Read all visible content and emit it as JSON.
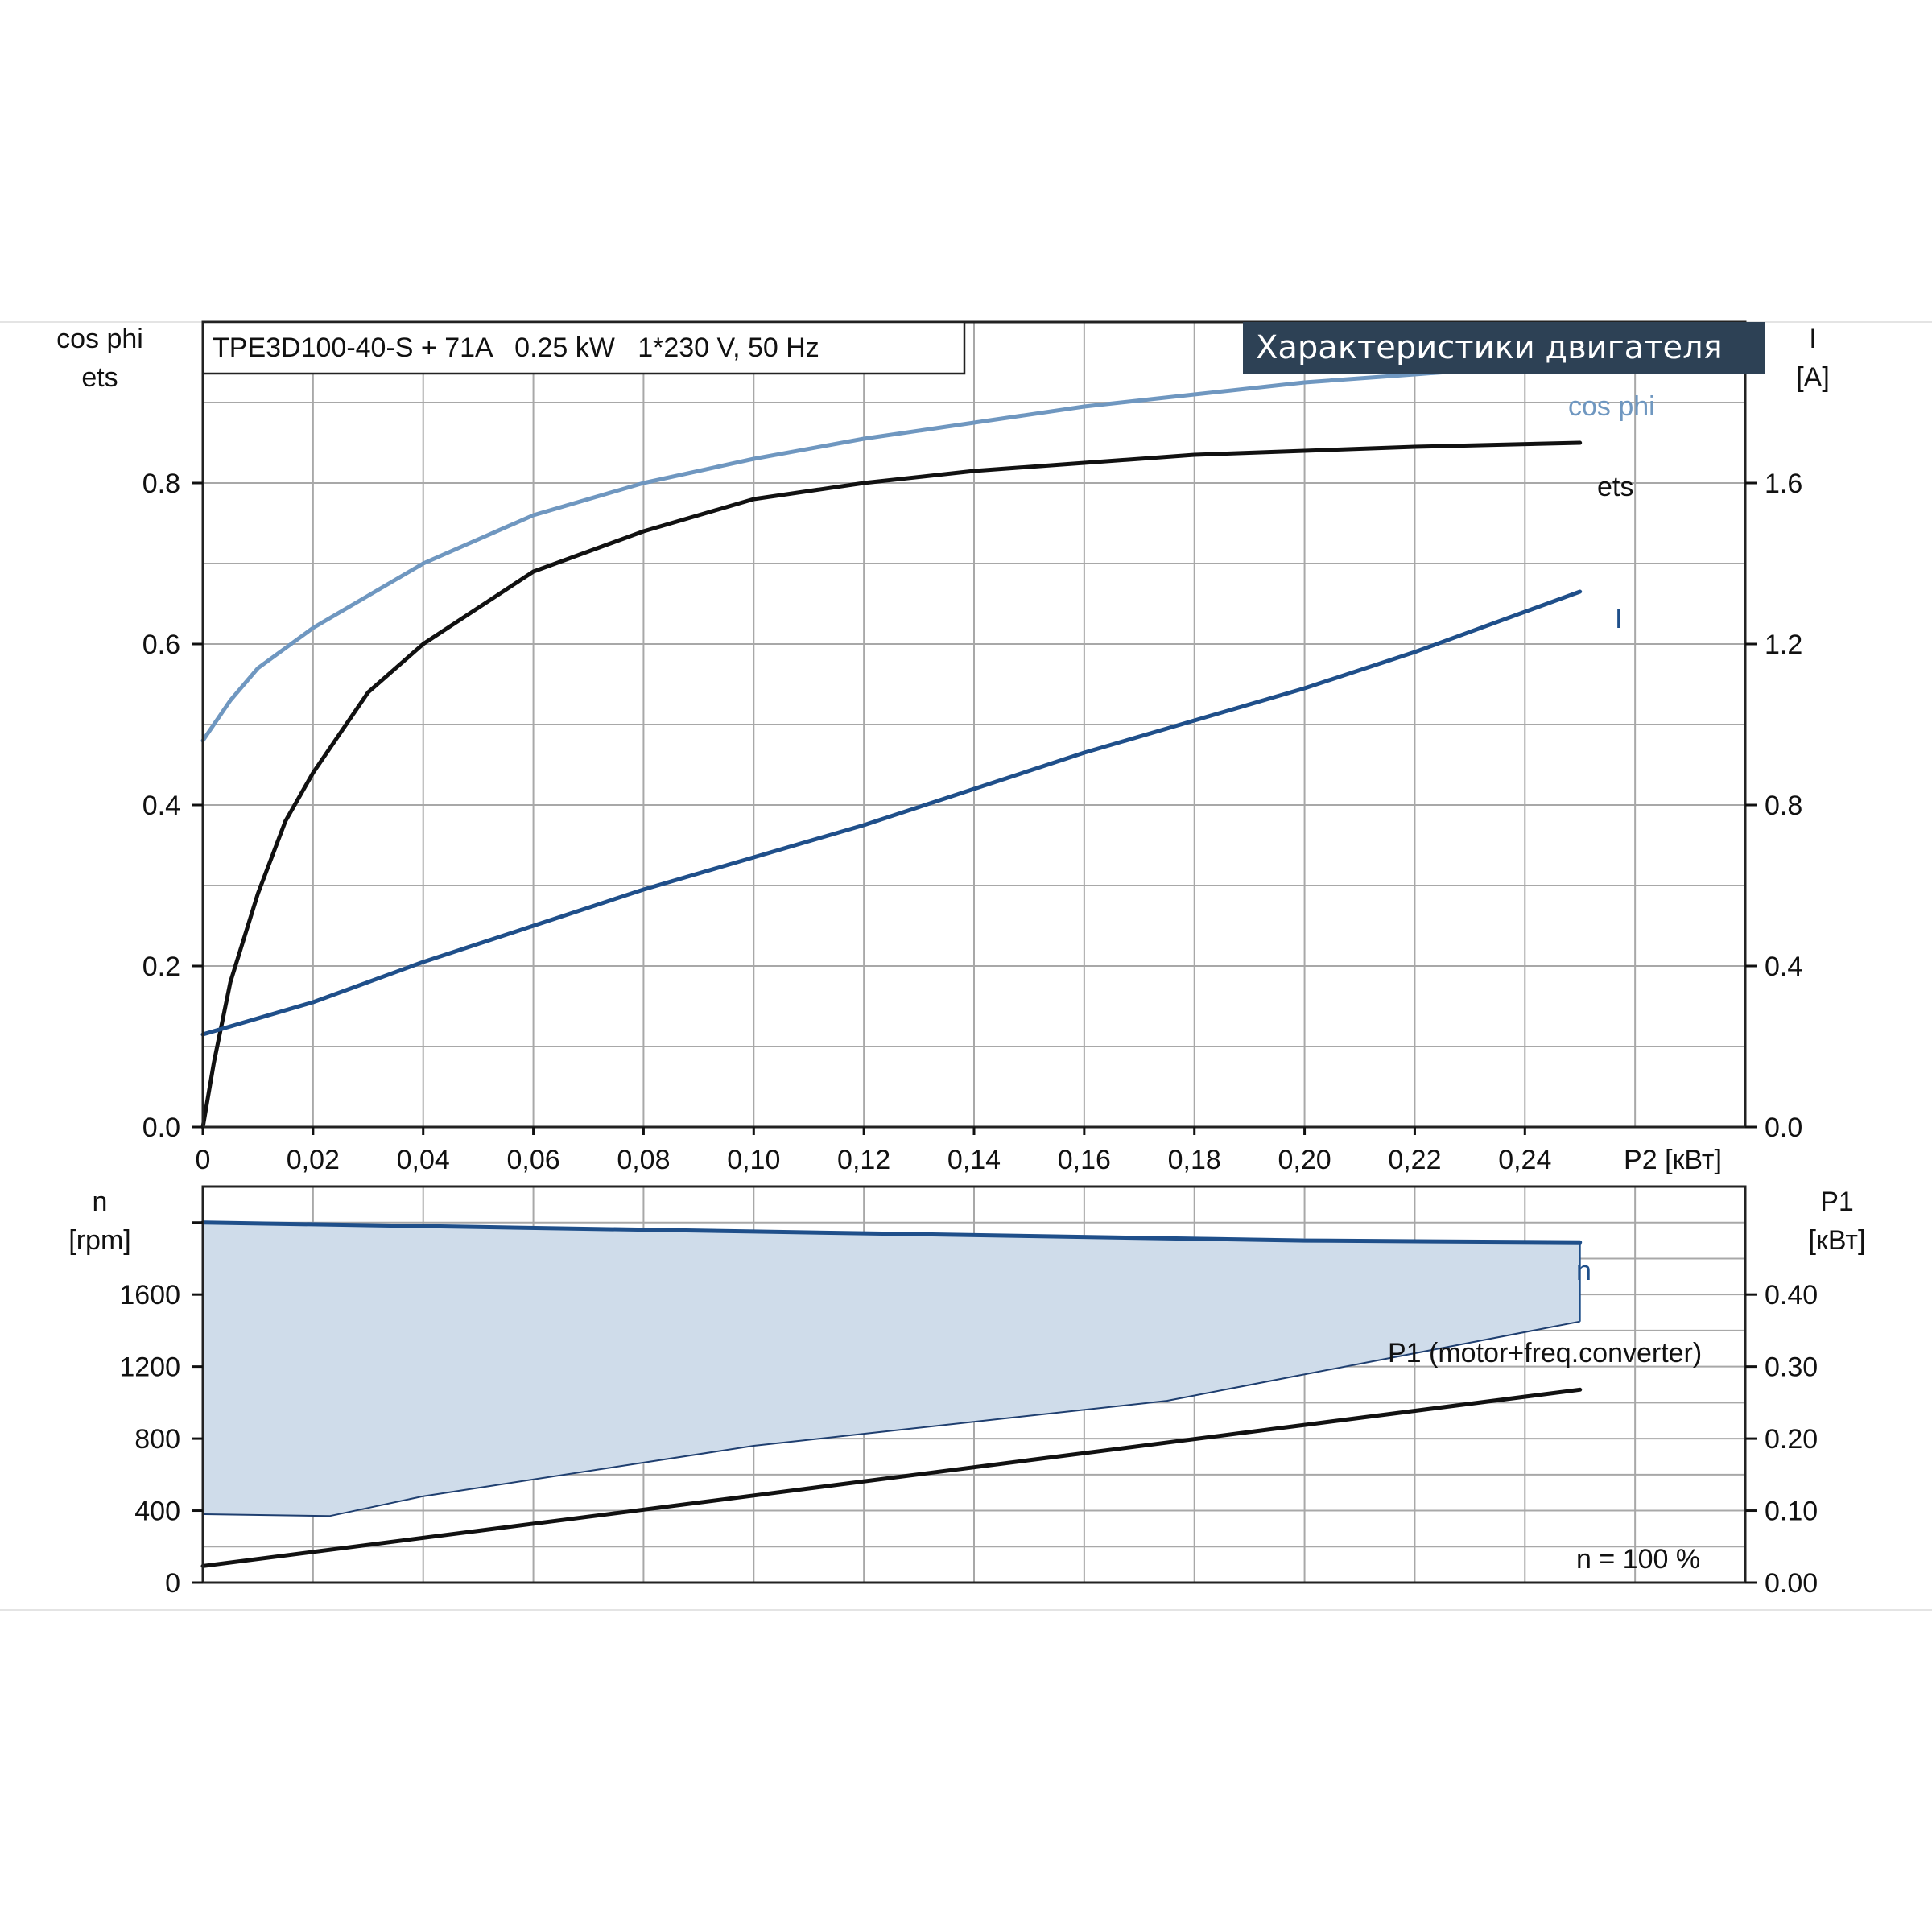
{
  "top_chart": {
    "header_text": "TPE3D100-40-S + 71A   0.25 kW   1*230 V, 50 Hz",
    "badge_text": "Характеристики двигателя",
    "left_axis_label_line1": "cos phi",
    "left_axis_label_line2": "ets",
    "right_axis_label_line1": "I",
    "right_axis_label_line2": "[A]",
    "x_axis_label": "P2 [кВт]",
    "x_ticks": [
      "0",
      "0,02",
      "0,04",
      "0,06",
      "0,08",
      "0,10",
      "0,12",
      "0,14",
      "0,16",
      "0,18",
      "0,20",
      "0,22",
      "0,24"
    ],
    "left_ticks": [
      "0.0",
      "0.2",
      "0.4",
      "0.6",
      "0.8"
    ],
    "right_ticks": [
      "0.0",
      "0.4",
      "0.8",
      "1.2",
      "1.6"
    ]
  },
  "bottom_chart": {
    "left_axis_label_line1": "n",
    "left_axis_label_line2": "[rpm]",
    "right_axis_label_line1": "P1",
    "right_axis_label_line2": "[кВт]",
    "left_ticks": [
      "0",
      "400",
      "800",
      "1200",
      "1600"
    ],
    "right_ticks": [
      "0.00",
      "0.10",
      "0.20",
      "0.30",
      "0.40"
    ],
    "annotation": "n = 100 %"
  },
  "colors": {
    "cos_phi": "#6f97c0",
    "ets": "#111111",
    "current": "#1f4f8a",
    "speed": "#1f4f8a",
    "p1": "#111111",
    "band_fill": "#cfdcea",
    "badge_bg": "#2d4155"
  },
  "chart_data": [
    {
      "type": "line",
      "title": "",
      "xlabel": "P2 [кВт]",
      "ylabel": "cos phi / ets",
      "y2label": "I [A]",
      "xlim": [
        0,
        0.28
      ],
      "ylim": [
        0,
        1.0
      ],
      "y2lim": [
        0,
        2.0
      ],
      "grid": true,
      "series": [
        {
          "name": "cos phi",
          "axis": "left",
          "x": [
            0,
            0.005,
            0.01,
            0.02,
            0.03,
            0.04,
            0.06,
            0.08,
            0.1,
            0.12,
            0.14,
            0.16,
            0.18,
            0.2,
            0.22,
            0.25
          ],
          "y": [
            0.48,
            0.53,
            0.57,
            0.62,
            0.66,
            0.7,
            0.76,
            0.8,
            0.83,
            0.855,
            0.875,
            0.895,
            0.91,
            0.925,
            0.935,
            0.95
          ]
        },
        {
          "name": "ets",
          "axis": "left",
          "x": [
            0,
            0.002,
            0.005,
            0.01,
            0.015,
            0.02,
            0.03,
            0.04,
            0.06,
            0.08,
            0.1,
            0.12,
            0.14,
            0.16,
            0.18,
            0.2,
            0.22,
            0.25
          ],
          "y": [
            0.0,
            0.08,
            0.18,
            0.29,
            0.38,
            0.44,
            0.54,
            0.6,
            0.69,
            0.74,
            0.78,
            0.8,
            0.815,
            0.825,
            0.835,
            0.84,
            0.845,
            0.85
          ]
        },
        {
          "name": "I",
          "axis": "right",
          "x": [
            0,
            0.02,
            0.04,
            0.06,
            0.08,
            0.1,
            0.12,
            0.14,
            0.16,
            0.18,
            0.2,
            0.22,
            0.25
          ],
          "y": [
            0.23,
            0.31,
            0.41,
            0.5,
            0.59,
            0.67,
            0.75,
            0.84,
            0.93,
            1.01,
            1.09,
            1.18,
            1.33
          ]
        }
      ]
    },
    {
      "type": "line",
      "title": "",
      "xlabel": "P2 [кВт]",
      "ylabel": "n [rpm]",
      "y2label": "P1 [кВт]",
      "xlim": [
        0,
        0.28
      ],
      "ylim": [
        0,
        2200
      ],
      "y2lim": [
        0,
        0.55
      ],
      "grid": true,
      "series": [
        {
          "name": "n",
          "axis": "left",
          "x": [
            0,
            0.05,
            0.1,
            0.15,
            0.2,
            0.25
          ],
          "y": [
            2000,
            1975,
            1950,
            1925,
            1900,
            1890
          ]
        },
        {
          "name": "P1 (motor+freq.converter)",
          "axis": "right",
          "x": [
            0,
            0.05,
            0.1,
            0.15,
            0.2,
            0.25
          ],
          "y": [
            0.023,
            0.072,
            0.121,
            0.17,
            0.219,
            0.268
          ]
        }
      ],
      "band": {
        "axis": "left",
        "upper": {
          "x": [
            0,
            0.25,
            0.25
          ],
          "y": [
            2000,
            1890,
            1450
          ]
        },
        "lower": {
          "x": [
            0,
            0.023,
            0.04,
            0.1,
            0.175,
            0.25
          ],
          "y": [
            380,
            370,
            480,
            760,
            1010,
            1450
          ]
        }
      }
    }
  ]
}
